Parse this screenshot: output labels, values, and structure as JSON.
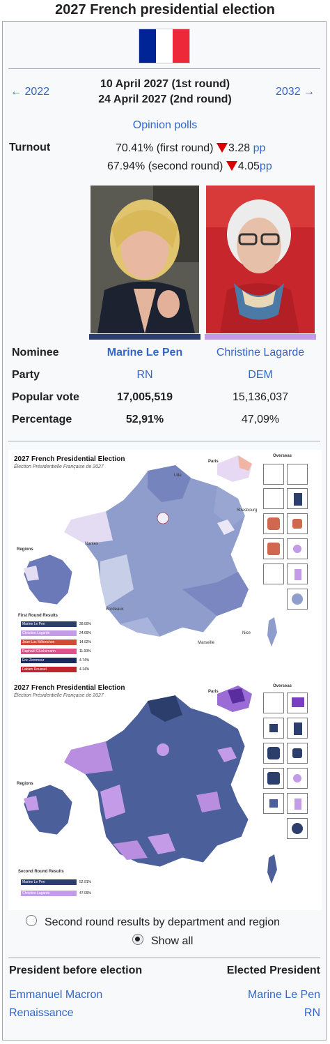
{
  "title": "2027 French presidential election",
  "nav": {
    "prev": "← 2022",
    "next": "2032 →",
    "date_round1": "10 April 2027 (1st round)",
    "date_round2": "24 April 2027 (2nd round)",
    "opinion_polls": "Opinion polls"
  },
  "turnout": {
    "label": "Turnout",
    "first_value": "70.41% (first round)",
    "first_change": "3.28",
    "first_unit": "pp",
    "second_value": "67.94% (second round)",
    "second_change": "4.05",
    "second_unit": "pp"
  },
  "candidates": {
    "labels": {
      "nominee": "Nominee",
      "party": "Party",
      "popular_vote": "Popular vote",
      "percentage": "Percentage"
    },
    "winner": {
      "name": "Marine Le Pen",
      "party": "RN",
      "votes": "17,005,519",
      "percentage": "52,91%",
      "color": "#2c3e6b"
    },
    "runner_up": {
      "name": "Christine Lagarde",
      "party": "DEM",
      "votes": "15,136,037",
      "percentage": "47,09%",
      "color": "#c39be6"
    }
  },
  "map1": {
    "title": "2027 French Presidential Election",
    "subtitle": "Élection Présidentielle Française de 2027",
    "paris": "Paris",
    "overseas": "Overseas",
    "regions": "Regions",
    "cities": [
      "Lille",
      "Strasbourg",
      "Nantes",
      "Bordeaux",
      "Marseille",
      "Nice"
    ],
    "results_title": "First Round Results",
    "results": [
      {
        "name": "Marine Le Pen",
        "pct": "28.00%",
        "color": "#2c3e6b"
      },
      {
        "name": "Christine Lagarde",
        "pct": "24.69%",
        "color": "#c39be6"
      },
      {
        "name": "Jean-Luc Mélenchon",
        "pct": "14.92%",
        "color": "#d04a3a"
      },
      {
        "name": "Raphaël Glucksmann",
        "pct": "11.00%",
        "color": "#e0508c"
      },
      {
        "name": "Éric Zemmour",
        "pct": "4.74%",
        "color": "#1b2a5c"
      },
      {
        "name": "Fabien Roussel",
        "pct": "4.14%",
        "color": "#c0242c"
      }
    ]
  },
  "map2": {
    "title": "2027 French Presidential Election",
    "subtitle": "Élection Présidentielle Française de 2027",
    "paris": "Paris",
    "overseas": "Overseas",
    "regions": "Regions",
    "results_title": "Second Round Results",
    "results": [
      {
        "name": "Marine Le Pen",
        "pct": "52.91%",
        "color": "#2c3e6b"
      },
      {
        "name": "Christine Lagarde",
        "pct": "47.09%",
        "color": "#c39be6"
      }
    ]
  },
  "options": {
    "second_round": "Second round results by department and region",
    "show_all": "Show all"
  },
  "succession": {
    "before_label": "President before election",
    "after_label": "Elected President",
    "before_name": "Emmanuel Macron",
    "before_party": "Renaissance",
    "after_name": "Marine Le Pen",
    "after_party": "RN"
  }
}
